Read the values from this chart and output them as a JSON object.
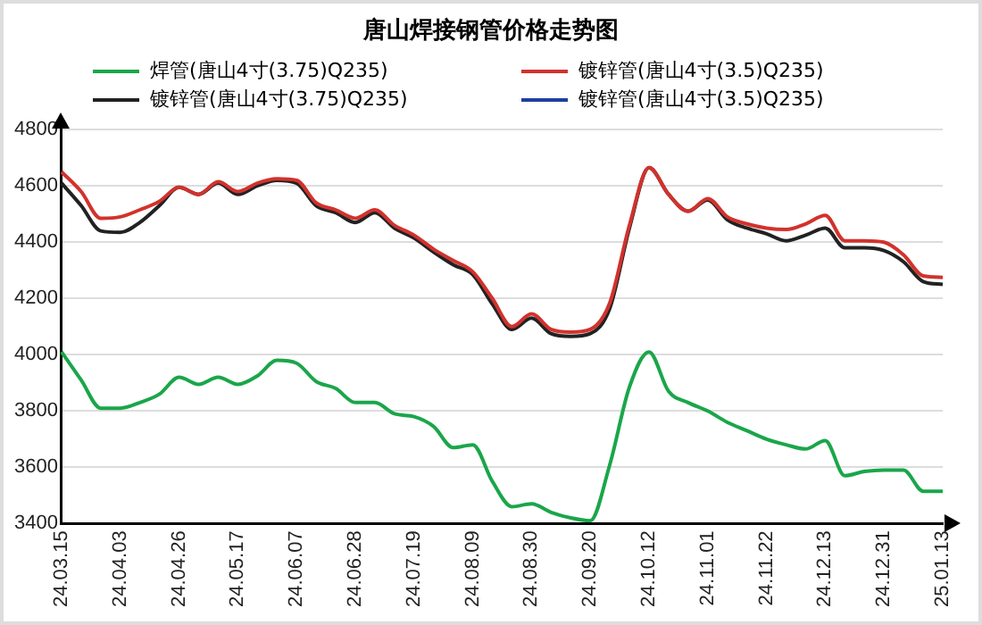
{
  "chart_data": {
    "type": "line",
    "title": "唐山焊接钢管价格走势图",
    "categories": [
      "24.03.15",
      null,
      null,
      "24.04.03",
      null,
      null,
      "24.04.26",
      null,
      null,
      "24.05.17",
      null,
      null,
      "24.06.07",
      null,
      null,
      "24.06.28",
      null,
      null,
      "24.07.19",
      null,
      null,
      "24.08.09",
      null,
      null,
      "24.08.30",
      null,
      null,
      "24.09.20",
      null,
      null,
      "24.10.12",
      null,
      null,
      "24.11.01",
      null,
      null,
      "24.11.22",
      null,
      null,
      "24.12.13",
      null,
      null,
      "24.12.31",
      null,
      null,
      "25.01.13"
    ],
    "series": [
      {
        "name": "焊管(唐山4寸(3.75)Q235)",
        "color": "#1aa64a",
        "values": [
          4010,
          3910,
          3810,
          3810,
          3830,
          3860,
          3920,
          3895,
          3920,
          3895,
          3925,
          3980,
          3970,
          3905,
          3880,
          3830,
          3830,
          3790,
          3780,
          3745,
          3670,
          3680,
          3550,
          3460,
          3470,
          3440,
          3420,
          3410,
          3610,
          3885,
          4010,
          3870,
          3830,
          3800,
          3760,
          3730,
          3700,
          3680,
          3665,
          3695,
          3570,
          3585,
          3590,
          3590,
          3515,
          3515
        ]
      },
      {
        "name": "镀锌管(唐山4寸(3.5)Q235)",
        "color": "#d2322d",
        "values": [
          4650,
          4580,
          4485,
          4490,
          4515,
          4545,
          4595,
          4570,
          4615,
          4580,
          4610,
          4625,
          4620,
          4540,
          4515,
          4485,
          4515,
          4460,
          4425,
          4375,
          4335,
          4295,
          4200,
          4100,
          4145,
          4090,
          4080,
          4090,
          4185,
          4460,
          4665,
          4570,
          4510,
          4555,
          4490,
          4465,
          4450,
          4445,
          4465,
          4495,
          4405,
          4405,
          4400,
          4355,
          4280,
          4275
        ]
      },
      {
        "name": "镀锌管(唐山4寸(3.75)Q235)",
        "color": "#222222",
        "values": [
          4610,
          4530,
          4440,
          4435,
          4470,
          4530,
          4595,
          4570,
          4610,
          4570,
          4600,
          4620,
          4610,
          4530,
          4505,
          4470,
          4505,
          4450,
          4415,
          4365,
          4320,
          4285,
          4180,
          4090,
          4130,
          4075,
          4065,
          4075,
          4165,
          4450,
          4665,
          4570,
          4510,
          4550,
          4480,
          4450,
          4430,
          4405,
          4425,
          4450,
          4380,
          4380,
          4370,
          4330,
          4260,
          4250
        ]
      },
      {
        "name": "镀锌管(唐山4寸(3.5)Q235)",
        "color": "#1f3f9f",
        "values": [
          null,
          null,
          null,
          null,
          null,
          null,
          null,
          null,
          null,
          null,
          null,
          null,
          null,
          null,
          null,
          null,
          null,
          null,
          null,
          null,
          null,
          null,
          null,
          null,
          null,
          null,
          null,
          null,
          null,
          null,
          null,
          null,
          null,
          null,
          null,
          null,
          null,
          null,
          null,
          null,
          null,
          null,
          null,
          null,
          null,
          null
        ]
      }
    ],
    "ylim": [
      3400,
      4800
    ],
    "yticks": [
      3400,
      3600,
      3800,
      4000,
      4200,
      4400,
      4600,
      4800
    ],
    "grid": "y",
    "legend": "top",
    "marker": "none",
    "line_style": "solid"
  }
}
